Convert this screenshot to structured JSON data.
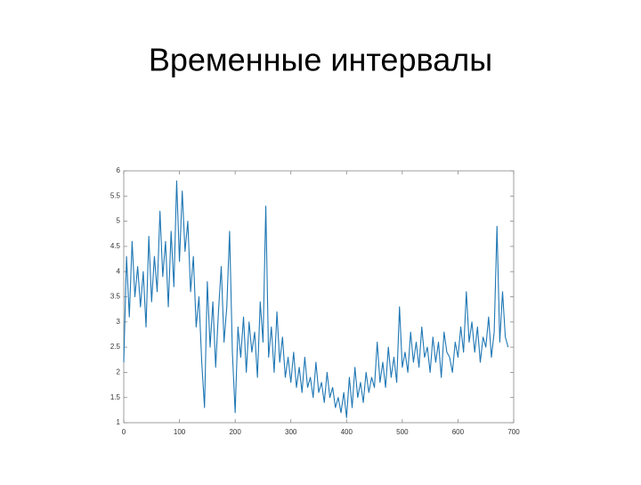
{
  "title": "Временные интервалы",
  "chart_data": {
    "type": "line",
    "x": [
      0,
      5,
      10,
      15,
      20,
      25,
      30,
      35,
      40,
      45,
      50,
      55,
      60,
      65,
      70,
      75,
      80,
      85,
      90,
      95,
      100,
      105,
      110,
      115,
      120,
      125,
      130,
      135,
      140,
      145,
      150,
      155,
      160,
      165,
      170,
      175,
      180,
      185,
      190,
      195,
      200,
      205,
      210,
      215,
      220,
      225,
      230,
      235,
      240,
      245,
      250,
      255,
      260,
      265,
      270,
      275,
      280,
      285,
      290,
      295,
      300,
      305,
      310,
      315,
      320,
      325,
      330,
      335,
      340,
      345,
      350,
      355,
      360,
      365,
      370,
      375,
      380,
      385,
      390,
      395,
      400,
      405,
      410,
      415,
      420,
      425,
      430,
      435,
      440,
      445,
      450,
      455,
      460,
      465,
      470,
      475,
      480,
      485,
      490,
      495,
      500,
      505,
      510,
      515,
      520,
      525,
      530,
      535,
      540,
      545,
      550,
      555,
      560,
      565,
      570,
      575,
      580,
      585,
      590,
      595,
      600,
      605,
      610,
      615,
      620,
      625,
      630,
      635,
      640,
      645,
      650,
      655,
      660,
      665,
      670,
      675,
      680,
      685,
      690
    ],
    "series": [
      {
        "color": "#1f77b4",
        "values": [
          2.2,
          4.3,
          3.1,
          4.6,
          3.5,
          4.1,
          3.3,
          4.0,
          2.9,
          4.7,
          3.4,
          4.3,
          3.6,
          5.2,
          3.9,
          4.6,
          3.3,
          4.8,
          3.7,
          5.8,
          4.2,
          5.6,
          4.4,
          5.0,
          3.6,
          4.3,
          2.9,
          3.5,
          2.2,
          1.3,
          3.8,
          2.5,
          3.4,
          2.1,
          3.2,
          4.1,
          2.6,
          3.3,
          4.8,
          2.4,
          1.2,
          2.9,
          2.3,
          3.1,
          2.0,
          3.0,
          2.4,
          2.8,
          1.9,
          3.4,
          2.6,
          5.3,
          2.3,
          2.9,
          2.0,
          3.2,
          2.2,
          2.7,
          1.9,
          2.3,
          1.8,
          2.4,
          1.7,
          2.1,
          1.6,
          2.3,
          1.7,
          1.9,
          1.5,
          2.2,
          1.6,
          1.8,
          1.4,
          2.0,
          1.5,
          1.7,
          1.3,
          1.5,
          1.2,
          1.6,
          1.1,
          1.9,
          1.3,
          2.1,
          1.5,
          1.8,
          1.4,
          2.0,
          1.6,
          1.9,
          1.7,
          2.6,
          1.8,
          2.2,
          1.7,
          2.5,
          1.9,
          2.3,
          1.8,
          3.3,
          2.1,
          2.4,
          2.0,
          2.8,
          2.2,
          2.6,
          2.1,
          2.9,
          2.3,
          2.5,
          2.0,
          2.7,
          2.2,
          2.6,
          1.9,
          2.8,
          2.4,
          2.3,
          2.0,
          2.6,
          2.3,
          2.9,
          2.4,
          3.6,
          2.6,
          3.0,
          2.4,
          2.9,
          2.2,
          2.7,
          2.5,
          3.1,
          2.3,
          2.8,
          4.9,
          2.6,
          3.6,
          2.7,
          2.5
        ]
      }
    ],
    "xlim": [
      0,
      700
    ],
    "xticks": [
      0,
      100,
      200,
      300,
      400,
      500,
      600,
      700
    ],
    "ylim": [
      1,
      6
    ],
    "yticks": [
      1,
      1.5,
      2,
      2.5,
      3,
      3.5,
      4,
      4.5,
      5,
      5.5,
      6
    ]
  }
}
